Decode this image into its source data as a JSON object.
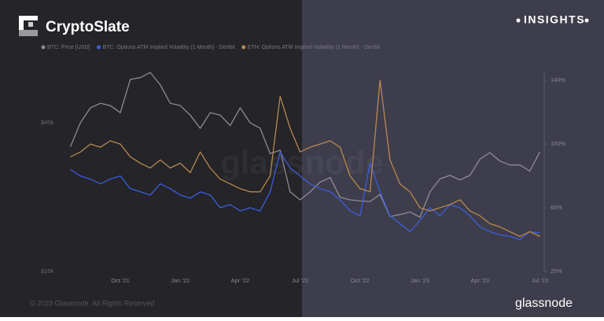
{
  "header": {
    "brand": "CryptoSlate",
    "badge": "INSIGHTS"
  },
  "watermark": "glassnode",
  "footer": {
    "copyright": "© 2023 Glassnode. All Rights Reserved",
    "logo": "glassnode"
  },
  "chart_data": {
    "type": "line",
    "categories": [
      null,
      null,
      null,
      null,
      null,
      "Oct '21",
      null,
      null,
      null,
      null,
      null,
      "Jan '22",
      null,
      null,
      null,
      null,
      null,
      "Apr '22",
      null,
      null,
      null,
      null,
      null,
      "Jul '22",
      null,
      null,
      null,
      null,
      null,
      "Oct '22",
      null,
      null,
      null,
      null,
      null,
      "Jan '23",
      null,
      null,
      null,
      null,
      null,
      "Apr '23",
      null,
      null,
      null,
      null,
      null,
      "Jul '23"
    ],
    "ylog": true,
    "ylim": [
      10000,
      65000
    ],
    "yticks": [
      {
        "value": 10000,
        "label": "$10k"
      },
      {
        "value": 40000,
        "label": "$40k"
      }
    ],
    "y2lim": [
      20,
      146
    ],
    "y2ticks": [
      {
        "value": 20,
        "label": "20%"
      },
      {
        "value": 60,
        "label": "60%"
      },
      {
        "value": 100,
        "label": "100%"
      },
      {
        "value": 140,
        "label": "140%"
      }
    ],
    "series": [
      {
        "name": "BTC: Price [USD]",
        "color": "#8e8c96",
        "values": [
          32000,
          40000,
          46000,
          48000,
          47000,
          44000,
          60000,
          61000,
          64000,
          57000,
          48000,
          47000,
          43000,
          38000,
          44000,
          43000,
          39000,
          46000,
          40000,
          38000,
          30000,
          31000,
          21000,
          19500,
          21000,
          23000,
          24000,
          20000,
          19500,
          19300,
          19200,
          20500,
          16700,
          17000,
          17400,
          16600,
          21000,
          23700,
          24500,
          23500,
          24500,
          28500,
          30300,
          28000,
          27000,
          27000,
          25500,
          30500
        ]
      },
      {
        "name": "BTC: Options ATM Implied Volatility (1 Month) - Deribit",
        "color": "#3a5ee0",
        "axis": "y2",
        "values": [
          84,
          80,
          78,
          75,
          78,
          80,
          72,
          70,
          68,
          75,
          72,
          68,
          66,
          70,
          68,
          60,
          62,
          58,
          60,
          58,
          70,
          95,
          85,
          80,
          75,
          72,
          70,
          65,
          58,
          55,
          88,
          70,
          55,
          50,
          45,
          52,
          60,
          55,
          62,
          60,
          55,
          48,
          45,
          43,
          42,
          40,
          45,
          44
        ]
      },
      {
        "name": "ETH: Options ATM Implied Volatility (1 Month) - Deribit",
        "color": "#b8894e",
        "axis": "y2",
        "values": [
          92,
          95,
          100,
          98,
          102,
          100,
          92,
          88,
          85,
          90,
          85,
          88,
          82,
          95,
          85,
          78,
          75,
          72,
          70,
          70,
          80,
          130,
          110,
          95,
          98,
          100,
          102,
          98,
          80,
          72,
          70,
          140,
          90,
          75,
          70,
          60,
          58,
          60,
          62,
          65,
          58,
          55,
          50,
          48,
          45,
          42,
          45,
          42
        ]
      }
    ]
  }
}
